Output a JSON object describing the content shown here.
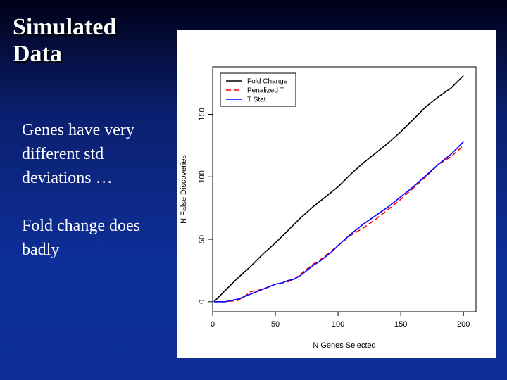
{
  "slide": {
    "title_lines": [
      "Simulated",
      "Data"
    ],
    "body": {
      "para1": [
        "Genes have very",
        "different std",
        "deviations …"
      ],
      "para2": [
        "Fold change does",
        "badly"
      ]
    }
  },
  "chart_data": {
    "type": "line",
    "title": "",
    "xlabel": "N Genes Selected",
    "ylabel": "N False Discoveries",
    "xlim": [
      0,
      210
    ],
    "ylim": [
      -8,
      188
    ],
    "xticks": [
      0,
      50,
      100,
      150,
      200
    ],
    "yticks": [
      0,
      50,
      100,
      150
    ],
    "legend_position": "top-left",
    "grid": false,
    "series": [
      {
        "name": "Fold Change",
        "color": "#000000",
        "dash": "solid",
        "x": [
          1,
          10,
          20,
          30,
          40,
          50,
          60,
          70,
          80,
          90,
          100,
          110,
          120,
          130,
          140,
          150,
          160,
          170,
          180,
          190,
          200
        ],
        "y": [
          0,
          9,
          19,
          28,
          38,
          47,
          57,
          67,
          76,
          84,
          92,
          102,
          111,
          119,
          127,
          136,
          146,
          156,
          164,
          171,
          181
        ]
      },
      {
        "name": "Penalized T",
        "color": "#ff0000",
        "dash": "dashed",
        "x": [
          1,
          10,
          20,
          25,
          30,
          35,
          40,
          45,
          50,
          55,
          60,
          65,
          70,
          75,
          80,
          85,
          90,
          95,
          100,
          110,
          120,
          130,
          140,
          150,
          160,
          170,
          180,
          190,
          200
        ],
        "y": [
          0,
          0,
          1,
          4,
          8,
          9,
          10,
          12,
          14,
          15,
          16,
          18,
          22,
          26,
          30,
          33,
          37,
          41,
          45,
          53,
          59,
          66,
          74,
          82,
          91,
          100,
          110,
          116,
          125
        ]
      },
      {
        "name": "T Stat",
        "color": "#0000ff",
        "dash": "solid",
        "x": [
          1,
          10,
          20,
          25,
          30,
          35,
          40,
          45,
          50,
          55,
          60,
          65,
          70,
          75,
          80,
          85,
          90,
          95,
          100,
          110,
          120,
          130,
          140,
          150,
          160,
          170,
          180,
          190,
          200
        ],
        "y": [
          0,
          0,
          2,
          4,
          6,
          8,
          10,
          12,
          14,
          15,
          17,
          18,
          21,
          25,
          29,
          32,
          36,
          40,
          45,
          54,
          62,
          69,
          76,
          84,
          92,
          101,
          110,
          118,
          128
        ]
      }
    ]
  }
}
